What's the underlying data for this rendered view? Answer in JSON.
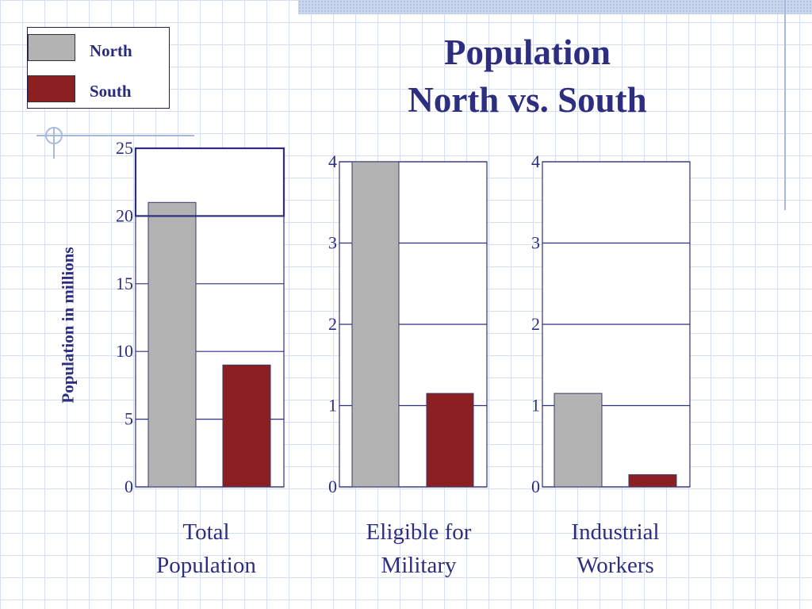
{
  "title": {
    "line1": "Population",
    "line2": "North vs. South"
  },
  "legend": [
    {
      "label": "North",
      "color": "#b3b3b3"
    },
    {
      "label": "South",
      "color": "#8b1f22"
    }
  ],
  "ylabel": "Population in millions",
  "chart_data": [
    {
      "type": "bar",
      "category_lines": [
        "Total",
        "Population"
      ],
      "series": [
        {
          "name": "North",
          "values": [
            21
          ]
        },
        {
          "name": "South",
          "values": [
            9
          ]
        }
      ],
      "ylim": [
        0,
        25
      ],
      "yticks": [
        0,
        5,
        10,
        15,
        20,
        25
      ],
      "ylabel": "Population in millions",
      "grid": true
    },
    {
      "type": "bar",
      "category_lines": [
        "Eligible for",
        "Military"
      ],
      "series": [
        {
          "name": "North",
          "values": [
            4
          ]
        },
        {
          "name": "South",
          "values": [
            1.15
          ]
        }
      ],
      "ylim": [
        0,
        4
      ],
      "yticks": [
        0,
        1,
        2,
        3,
        4
      ],
      "grid": true
    },
    {
      "type": "bar",
      "category_lines": [
        "Industrial",
        "Workers"
      ],
      "series": [
        {
          "name": "North",
          "values": [
            1.15
          ]
        },
        {
          "name": "South",
          "values": [
            0.15
          ]
        }
      ],
      "ylim": [
        0,
        4
      ],
      "yticks": [
        0,
        1,
        2,
        3,
        4
      ],
      "grid": true
    }
  ],
  "colors": {
    "north": "#b3b3b3",
    "south": "#8b1f22",
    "axis": "#2e2e80",
    "text": "#2e2e80"
  }
}
